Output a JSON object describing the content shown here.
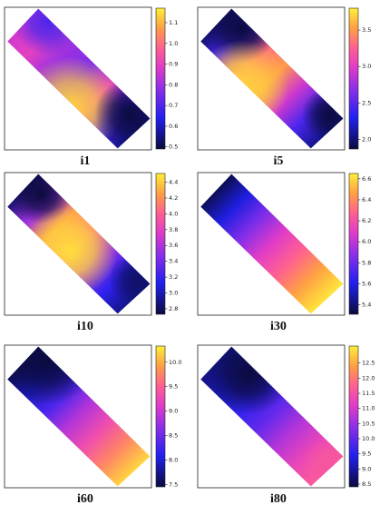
{
  "chart_data": [
    {
      "type": "contour",
      "title": "i1",
      "zlim": [
        0.49,
        1.17
      ],
      "zticks": [
        0.5,
        0.6,
        0.7,
        0.8,
        0.9,
        {
          "value": 1.0,
          "label": "1.0"
        },
        1.1
      ]
    },
    {
      "type": "contour",
      "title": "i5",
      "zlim": [
        1.87,
        3.8
      ],
      "zticks": [
        {
          "value": 2.0,
          "label": "2.0"
        },
        2.5,
        {
          "value": 3.0,
          "label": "3.0"
        },
        3.5
      ]
    },
    {
      "type": "contour",
      "title": "i10",
      "zlim": [
        2.73,
        4.51
      ],
      "zticks": [
        2.8,
        {
          "value": 3.0,
          "label": "3.0"
        },
        3.2,
        3.4,
        3.6,
        3.8,
        {
          "value": 4.0,
          "label": "4.0"
        },
        4.2,
        4.4
      ]
    },
    {
      "type": "contour",
      "title": "i30",
      "zlim": [
        5.31,
        6.65
      ],
      "zticks": [
        5.4,
        5.6,
        5.8,
        {
          "value": 6.0,
          "label": "6.0"
        },
        6.2,
        6.4,
        6.6
      ]
    },
    {
      "type": "contour",
      "title": "i60",
      "zlim": [
        7.45,
        10.33
      ],
      "zticks": [
        7.5,
        {
          "value": 8.0,
          "label": "8.0"
        },
        8.5,
        {
          "value": 9.0,
          "label": "9.0"
        },
        9.5,
        {
          "value": 10.0,
          "label": "10.0"
        }
      ]
    },
    {
      "type": "contour",
      "title": "i80",
      "zlim": [
        8.41,
        13.06
      ],
      "zticks": [
        8.5,
        {
          "value": 9.0,
          "label": "9.0"
        },
        9.5,
        {
          "value": 10.0,
          "label": "10.0"
        },
        10.5,
        {
          "value": 11.0,
          "label": "11.0"
        },
        11.5,
        {
          "value": 12.0,
          "label": "12.0"
        },
        12.5
      ]
    }
  ]
}
